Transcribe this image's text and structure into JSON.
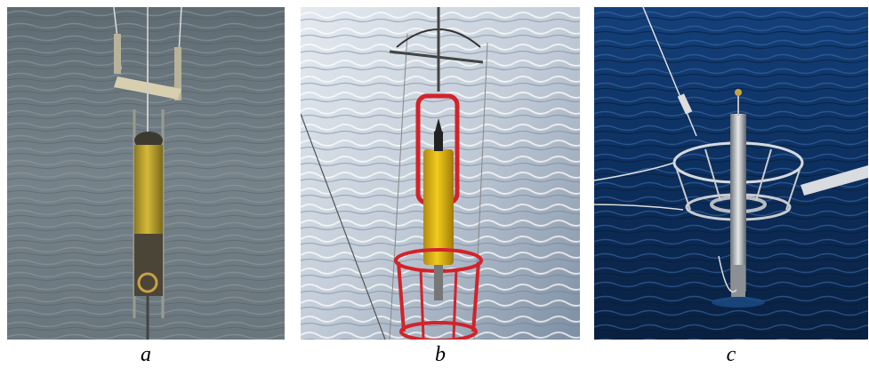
{
  "panels": [
    {
      "caption": "a",
      "subject": "yellow-cylinder-instrument-grey-water"
    },
    {
      "caption": "b",
      "subject": "yellow-instrument-red-frame-bright-water"
    },
    {
      "caption": "c",
      "subject": "metal-probe-ring-frame-dark-blue-water"
    }
  ],
  "colors": {
    "water_a": "#6f7a80",
    "water_b": "#cdd6e0",
    "water_c": "#0d2f5c",
    "instrument_yellow": "#d8b52c",
    "frame_red": "#d2232a",
    "steel": "#c8cbd0"
  }
}
